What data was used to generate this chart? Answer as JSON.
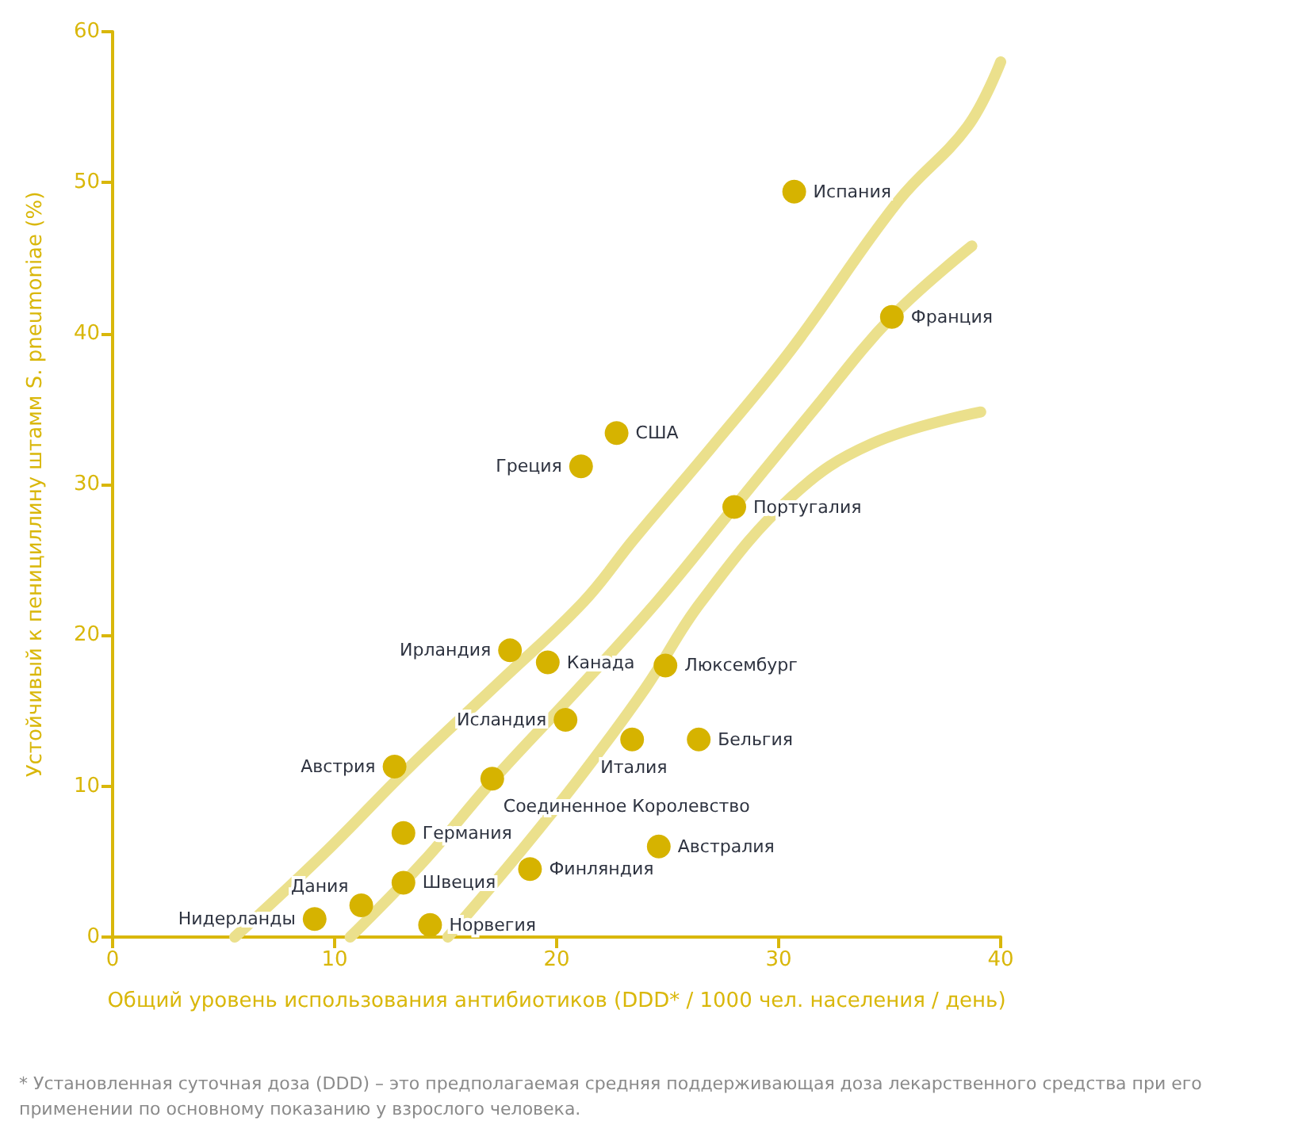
{
  "chart_data": {
    "type": "scatter",
    "xlabel": "Общий уровень использования антибиотиков (DDD* / 1000 чел. населения / день)",
    "ylabel": "Устойчивый к пенициллину штамм S. pneumoniae (%)",
    "xlim": [
      0,
      40
    ],
    "xticks": [
      0,
      10,
      20,
      30,
      40
    ],
    "ylim": [
      0,
      60
    ],
    "yticks": [
      0,
      10,
      20,
      30,
      40,
      50,
      60
    ],
    "grid": false,
    "series": [
      {
        "type": "line",
        "color": "#ebe08c",
        "marker": "none",
        "x": [
          5.5,
          9.5,
          13.4,
          17.5,
          21.2,
          23.5,
          27,
          30.6,
          35.4,
          38.5,
          40
        ],
        "values": [
          0,
          5.5,
          11.3,
          17,
          22.2,
          26.4,
          32.5,
          39,
          48.8,
          53.7,
          58
        ]
      },
      {
        "type": "line",
        "color": "#ebe08c",
        "marker": "none",
        "x": [
          10.7,
          14,
          17.2,
          21,
          24.5,
          28,
          31.5,
          35.1,
          38.7
        ],
        "values": [
          0,
          5,
          10.5,
          16.5,
          22.2,
          28.5,
          34.8,
          41.1,
          45.8
        ]
      },
      {
        "type": "line",
        "color": "#ebe08c",
        "marker": "none",
        "x": [
          15.1,
          18,
          21,
          24,
          26.5,
          30.6,
          34.2,
          39.1
        ],
        "values": [
          0,
          5,
          10.5,
          16.5,
          22.2,
          29.2,
          32.7,
          34.8
        ]
      },
      {
        "color": "#d6b300",
        "marker": "circle",
        "x": [
          30.7,
          35.1,
          22.7,
          21.1,
          28.0,
          17.9,
          19.6,
          24.9,
          20.4,
          23.4,
          26.4,
          12.7,
          17.1,
          13.1,
          24.6,
          18.8,
          13.1,
          11.2,
          9.1,
          14.3
        ],
        "values": [
          49.4,
          41.1,
          33.4,
          31.2,
          28.5,
          19.0,
          18.2,
          18.0,
          14.4,
          13.1,
          13.1,
          11.3,
          10.5,
          6.9,
          6.0,
          4.5,
          3.6,
          2.1,
          1.2,
          0.8
        ]
      }
    ],
    "annotations": [
      {
        "text": "Испания",
        "x": 30.7,
        "y": 49.4
      },
      {
        "text": "Франция",
        "x": 35.1,
        "y": 41.1
      },
      {
        "text": "США",
        "x": 22.7,
        "y": 33.4
      },
      {
        "text": "Греция",
        "x": 21.1,
        "y": 31.2
      },
      {
        "text": "Португалия",
        "x": 28.0,
        "y": 28.5
      },
      {
        "text": "Ирландия",
        "x": 17.9,
        "y": 19.0
      },
      {
        "text": "Канада",
        "x": 19.6,
        "y": 18.2
      },
      {
        "text": "Люксембург",
        "x": 24.9,
        "y": 18.0
      },
      {
        "text": "Исландия",
        "x": 20.4,
        "y": 14.4
      },
      {
        "text": "Италия",
        "x": 23.4,
        "y": 13.1
      },
      {
        "text": "Бельгия",
        "x": 26.4,
        "y": 13.1
      },
      {
        "text": "Австрия",
        "x": 12.7,
        "y": 11.3
      },
      {
        "text": "Соединенное Королевство",
        "x": 17.1,
        "y": 10.5
      },
      {
        "text": "Германия",
        "x": 13.1,
        "y": 6.9
      },
      {
        "text": "Австралия",
        "x": 24.6,
        "y": 6.0
      },
      {
        "text": "Финляндия",
        "x": 18.8,
        "y": 4.5
      },
      {
        "text": "Швеция",
        "x": 13.1,
        "y": 3.6
      },
      {
        "text": "Дания",
        "x": 11.2,
        "y": 2.1
      },
      {
        "text": "Нидерланды",
        "x": 9.1,
        "y": 1.2
      },
      {
        "text": "Норвегия",
        "x": 14.3,
        "y": 0.8
      },
      "* Установленная суточная доза (DDD) – это предполагаемая средняя поддерживающая доза лекарственного средства при его применении по основному показанию у взрослого человека."
    ]
  }
}
